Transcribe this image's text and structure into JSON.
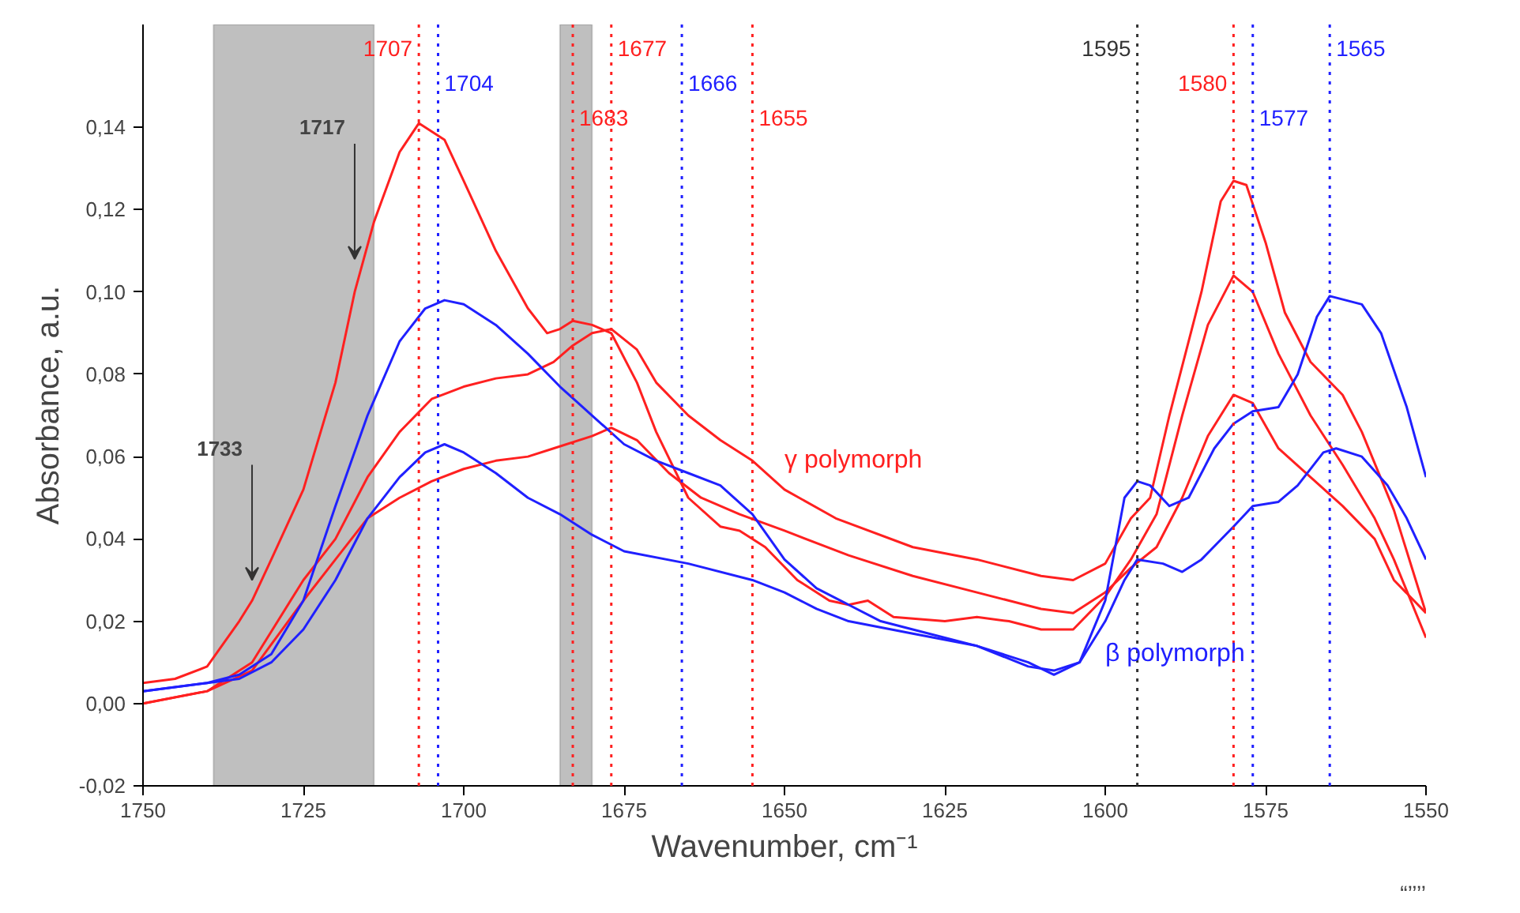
{
  "chart_data": {
    "type": "line",
    "xlabel": "Wavenumber, cm⁻¹",
    "ylabel": "Absorbance, a.u.",
    "xlim": [
      1750,
      1550
    ],
    "ylim": [
      -0.02,
      0.165
    ],
    "xticks": [
      1750,
      1725,
      1700,
      1675,
      1650,
      1625,
      1600,
      1575,
      1550
    ],
    "yticks": [
      {
        "value": -0.02,
        "label": "-0,02"
      },
      {
        "value": 0,
        "label": "0,00"
      },
      {
        "value": 0.02,
        "label": "0,02"
      },
      {
        "value": 0.04,
        "label": "0,04"
      },
      {
        "value": 0.06,
        "label": "0,06"
      },
      {
        "value": 0.08,
        "label": "0,08"
      },
      {
        "value": 0.1,
        "label": "0,10"
      },
      {
        "value": 0.12,
        "label": "0,12"
      },
      {
        "value": 0.14,
        "label": "0,14"
      }
    ],
    "grid": false,
    "marker": "none",
    "line_style": "solid",
    "series": [
      {
        "color": "#ff2020",
        "x": [
          1750,
          1745,
          1740,
          1735,
          1733,
          1730,
          1725,
          1720,
          1717,
          1714,
          1710,
          1707,
          1703,
          1700,
          1695,
          1690,
          1687,
          1685,
          1683,
          1680,
          1677,
          1673,
          1670,
          1665,
          1660,
          1657,
          1653,
          1648,
          1643,
          1640,
          1637,
          1633,
          1625,
          1620,
          1615,
          1610,
          1605,
          1600,
          1596,
          1592,
          1588,
          1584,
          1580,
          1577,
          1573,
          1568,
          1563,
          1558,
          1555,
          1550
        ],
        "values": [
          0.005,
          0.006,
          0.009,
          0.02,
          0.025,
          0.035,
          0.052,
          0.078,
          0.1,
          0.117,
          0.134,
          0.141,
          0.137,
          0.127,
          0.11,
          0.096,
          0.09,
          0.091,
          0.093,
          0.092,
          0.09,
          0.078,
          0.066,
          0.05,
          0.043,
          0.042,
          0.038,
          0.03,
          0.025,
          0.024,
          0.025,
          0.021,
          0.02,
          0.021,
          0.02,
          0.018,
          0.018,
          0.026,
          0.035,
          0.046,
          0.07,
          0.092,
          0.104,
          0.1,
          0.085,
          0.07,
          0.058,
          0.045,
          0.035,
          0.016
        ]
      },
      {
        "name": "γ polymorph",
        "color": "#ff2020",
        "x": [
          1750,
          1740,
          1733,
          1725,
          1720,
          1715,
          1710,
          1705,
          1700,
          1695,
          1690,
          1686,
          1683,
          1680,
          1677,
          1673,
          1670,
          1665,
          1660,
          1655,
          1650,
          1642,
          1630,
          1620,
          1610,
          1605,
          1600,
          1596,
          1593,
          1590,
          1585,
          1582,
          1580,
          1578,
          1575,
          1572,
          1568,
          1563,
          1560,
          1555,
          1552,
          1550
        ],
        "values": [
          0.0,
          0.003,
          0.01,
          0.03,
          0.04,
          0.055,
          0.066,
          0.074,
          0.077,
          0.079,
          0.08,
          0.083,
          0.087,
          0.09,
          0.091,
          0.086,
          0.078,
          0.07,
          0.064,
          0.059,
          0.052,
          0.045,
          0.038,
          0.035,
          0.031,
          0.03,
          0.034,
          0.045,
          0.05,
          0.07,
          0.1,
          0.122,
          0.127,
          0.126,
          0.112,
          0.095,
          0.083,
          0.075,
          0.066,
          0.047,
          0.032,
          0.022
        ]
      },
      {
        "color": "#ff2020",
        "x": [
          1750,
          1740,
          1733,
          1725,
          1720,
          1715,
          1710,
          1705,
          1700,
          1695,
          1690,
          1686,
          1680,
          1677,
          1673,
          1668,
          1663,
          1657,
          1650,
          1640,
          1630,
          1620,
          1610,
          1605,
          1600,
          1596,
          1592,
          1588,
          1584,
          1580,
          1577,
          1573,
          1568,
          1563,
          1558,
          1555,
          1550
        ],
        "values": [
          0.0,
          0.003,
          0.008,
          0.025,
          0.035,
          0.045,
          0.05,
          0.054,
          0.057,
          0.059,
          0.06,
          0.062,
          0.065,
          0.067,
          0.064,
          0.056,
          0.05,
          0.046,
          0.042,
          0.036,
          0.031,
          0.027,
          0.023,
          0.022,
          0.027,
          0.033,
          0.038,
          0.05,
          0.065,
          0.075,
          0.073,
          0.062,
          0.055,
          0.048,
          0.04,
          0.03,
          0.022
        ]
      },
      {
        "color": "#2020ff",
        "x": [
          1750,
          1740,
          1735,
          1730,
          1725,
          1720,
          1715,
          1710,
          1706,
          1703,
          1700,
          1695,
          1690,
          1685,
          1680,
          1675,
          1670,
          1665,
          1660,
          1655,
          1650,
          1645,
          1640,
          1635,
          1630,
          1620,
          1612,
          1608,
          1604,
          1600,
          1597,
          1595,
          1593,
          1590,
          1587,
          1583,
          1580,
          1577,
          1573,
          1570,
          1567,
          1565,
          1560,
          1557,
          1553,
          1550
        ],
        "values": [
          0.003,
          0.005,
          0.007,
          0.012,
          0.025,
          0.048,
          0.07,
          0.088,
          0.096,
          0.098,
          0.097,
          0.092,
          0.085,
          0.077,
          0.07,
          0.063,
          0.059,
          0.056,
          0.053,
          0.046,
          0.035,
          0.028,
          0.024,
          0.02,
          0.018,
          0.014,
          0.009,
          0.008,
          0.01,
          0.025,
          0.05,
          0.054,
          0.053,
          0.048,
          0.05,
          0.062,
          0.068,
          0.071,
          0.072,
          0.08,
          0.094,
          0.099,
          0.097,
          0.09,
          0.072,
          0.055
        ]
      },
      {
        "name": "β polymorph",
        "color": "#2020ff",
        "x": [
          1750,
          1740,
          1735,
          1730,
          1725,
          1720,
          1715,
          1710,
          1706,
          1703,
          1700,
          1695,
          1690,
          1685,
          1680,
          1675,
          1665,
          1655,
          1650,
          1645,
          1640,
          1630,
          1620,
          1612,
          1608,
          1604,
          1600,
          1597,
          1595,
          1591,
          1588,
          1585,
          1580,
          1577,
          1573,
          1570,
          1566,
          1564,
          1560,
          1556,
          1553,
          1550
        ],
        "values": [
          0.003,
          0.005,
          0.006,
          0.01,
          0.018,
          0.03,
          0.045,
          0.055,
          0.061,
          0.063,
          0.061,
          0.056,
          0.05,
          0.046,
          0.041,
          0.037,
          0.034,
          0.03,
          0.027,
          0.023,
          0.02,
          0.017,
          0.014,
          0.01,
          0.007,
          0.01,
          0.02,
          0.03,
          0.035,
          0.034,
          0.032,
          0.035,
          0.043,
          0.048,
          0.049,
          0.053,
          0.061,
          0.062,
          0.06,
          0.053,
          0.045,
          0.035
        ]
      }
    ],
    "ref_lines": [
      {
        "axis": "x",
        "value": 1707,
        "label": "1707",
        "color": "#ff2020",
        "line_style": "dotted"
      },
      {
        "axis": "x",
        "value": 1704,
        "label": "1704",
        "color": "#2020ff",
        "line_style": "dotted"
      },
      {
        "axis": "x",
        "value": 1683,
        "label": "1683",
        "color": "#ff2020",
        "line_style": "dotted"
      },
      {
        "axis": "x",
        "value": 1677,
        "label": "1677",
        "color": "#ff2020",
        "line_style": "dotted"
      },
      {
        "axis": "x",
        "value": 1666,
        "label": "1666",
        "color": "#2020ff",
        "line_style": "dotted"
      },
      {
        "axis": "x",
        "value": 1655,
        "label": "1655",
        "color": "#ff2020",
        "line_style": "dotted"
      },
      {
        "axis": "x",
        "value": 1595,
        "label": "1595",
        "color": "#333333",
        "line_style": "dotted"
      },
      {
        "axis": "x",
        "value": 1580,
        "label": "1580",
        "color": "#ff2020",
        "line_style": "dotted"
      },
      {
        "axis": "x",
        "value": 1577,
        "label": "1577",
        "color": "#2020ff",
        "line_style": "dotted"
      },
      {
        "axis": "x",
        "value": 1565,
        "label": "1565",
        "color": "#2020ff",
        "line_style": "dotted"
      }
    ],
    "bands": [
      {
        "axis": "x",
        "from": 1739,
        "to": 1714,
        "color": "#aaaaaa"
      },
      {
        "axis": "x",
        "from": 1685,
        "to": 1680,
        "color": "#aaaaaa"
      }
    ],
    "annotations": [
      {
        "text": "1717",
        "x": 1717,
        "y": 0.108
      },
      {
        "text": "1733",
        "x": 1733,
        "y": 0.03
      },
      "“’’’’"
    ]
  }
}
